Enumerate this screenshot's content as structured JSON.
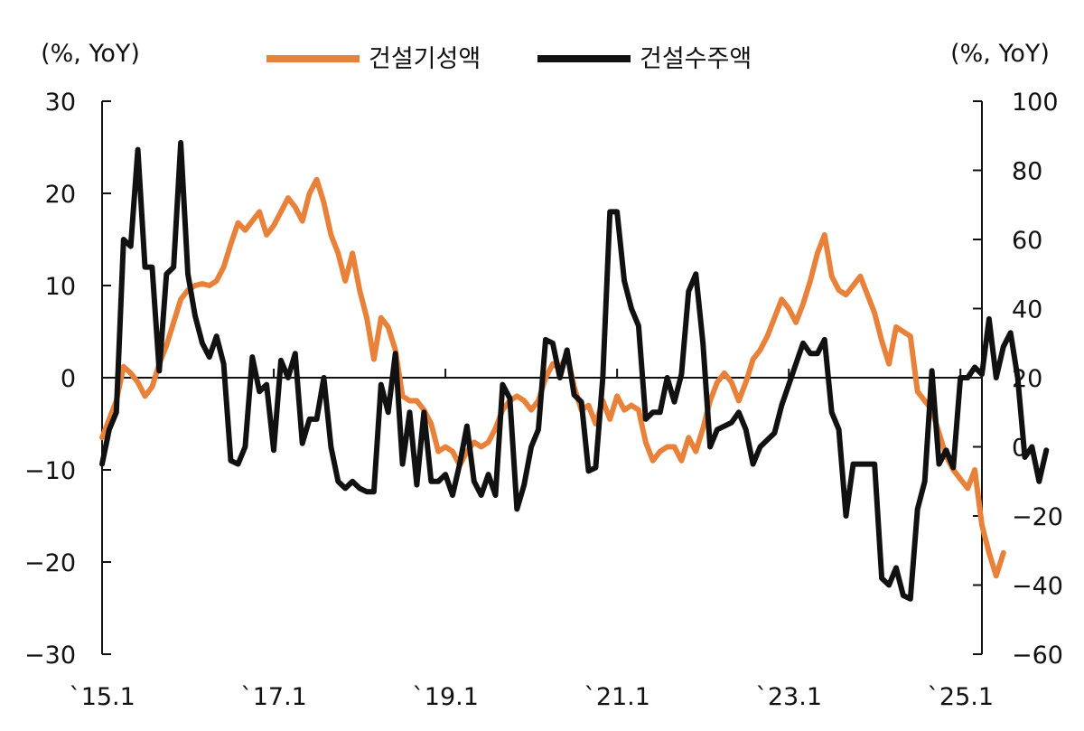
{
  "chart_data": {
    "type": "line",
    "left_axis_label": "(%, YoY)",
    "right_axis_label": "(%, YoY)",
    "left_ylim": [
      -30,
      30
    ],
    "left_ticks": [
      "30",
      "20",
      "10",
      "0",
      "−10",
      "−20",
      "−30"
    ],
    "right_ylim": [
      -60,
      100
    ],
    "right_ticks": [
      "100",
      "80",
      "60",
      "40",
      "20",
      "0",
      "−20",
      "−40",
      "−60"
    ],
    "x_tick_labels": [
      "`15.1",
      "`17.1",
      "`19.1",
      "`21.1",
      "`23.1",
      "`25.1"
    ],
    "x_ticks_index": [
      0,
      24,
      48,
      72,
      96,
      120
    ],
    "x_range_index": [
      0,
      123
    ],
    "grid": false,
    "legend_position": "top-center",
    "series": [
      {
        "name": "건설기성액",
        "axis": "left",
        "color": "#E8823A",
        "values": [
          -6.5,
          -4.5,
          -2.5,
          1.2,
          0.5,
          -0.5,
          -2.0,
          -1.0,
          1.5,
          3.5,
          6.0,
          8.5,
          9.5,
          10.0,
          10.2,
          10.0,
          10.5,
          12.0,
          14.5,
          16.8,
          16.0,
          17.0,
          18.0,
          15.5,
          16.5,
          18.0,
          19.5,
          18.5,
          17.0,
          20.0,
          21.5,
          19.0,
          15.5,
          13.5,
          10.5,
          13.5,
          9.5,
          6.5,
          2.0,
          6.5,
          5.5,
          3.0,
          -2.0,
          -2.5,
          -2.5,
          -3.5,
          -5.0,
          -8.0,
          -7.5,
          -8.0,
          -9.5,
          -8.0,
          -7.0,
          -7.5,
          -7.0,
          -5.5,
          -3.5,
          -2.5,
          -2.0,
          -2.5,
          -3.5,
          -2.5,
          0.0,
          1.5,
          1.0,
          2.5,
          -1.0,
          -3.5,
          -3.0,
          -5.0,
          -2.5,
          -4.5,
          -2.0,
          -3.5,
          -3.0,
          -3.5,
          -7.0,
          -9.0,
          -8.0,
          -7.5,
          -7.5,
          -9.0,
          -6.5,
          -8.0,
          -5.5,
          -2.5,
          -0.5,
          0.5,
          -0.5,
          -2.5,
          -0.5,
          2.0,
          3.0,
          4.5,
          6.5,
          8.5,
          7.5,
          6.0,
          8.0,
          10.5,
          13.5,
          15.5,
          11.0,
          9.5,
          9.0,
          10.0,
          11.0,
          9.0,
          7.0,
          4.0,
          1.5,
          5.5,
          5.0,
          4.5,
          -1.5,
          -2.5,
          -3.5,
          -6.0,
          -8.5,
          -10.0,
          -11.0,
          -12.0,
          -10.0,
          -16.0,
          -19.0,
          -21.5,
          -19.0
        ]
      },
      {
        "name": "건설수주액",
        "axis": "right",
        "color": "#111111",
        "values": [
          -5,
          5,
          10,
          60,
          58,
          86,
          52,
          52,
          22,
          50,
          52,
          88,
          50,
          38,
          30,
          26,
          32,
          24,
          -4,
          -5,
          0,
          26,
          16,
          18,
          -1,
          25,
          20,
          27,
          1,
          8,
          8,
          20,
          0,
          -10,
          -12,
          -10,
          -12,
          -13,
          -13,
          18,
          10,
          27,
          -5,
          10,
          -11,
          10,
          -10,
          -10,
          -8,
          -14,
          -5,
          6,
          -10,
          -14,
          -8,
          -14,
          18,
          14,
          -18,
          -11,
          0,
          5,
          31,
          30,
          20,
          28,
          15,
          13,
          -7,
          -6,
          20,
          68,
          68,
          48,
          40,
          35,
          8,
          10,
          10,
          20,
          13,
          21,
          45,
          50,
          30,
          0,
          5,
          6,
          7,
          10,
          5,
          -5,
          0,
          2,
          4,
          12,
          18,
          24,
          30,
          27,
          27,
          31,
          10,
          5,
          -20,
          -5,
          -5,
          -5,
          -5,
          -38,
          -40,
          -35,
          -43,
          -44,
          -18,
          -10,
          22,
          -5,
          -1,
          -6,
          20,
          20,
          23,
          21,
          37,
          20,
          29,
          33,
          20,
          -3,
          0,
          -10,
          -1
        ]
      }
    ]
  }
}
